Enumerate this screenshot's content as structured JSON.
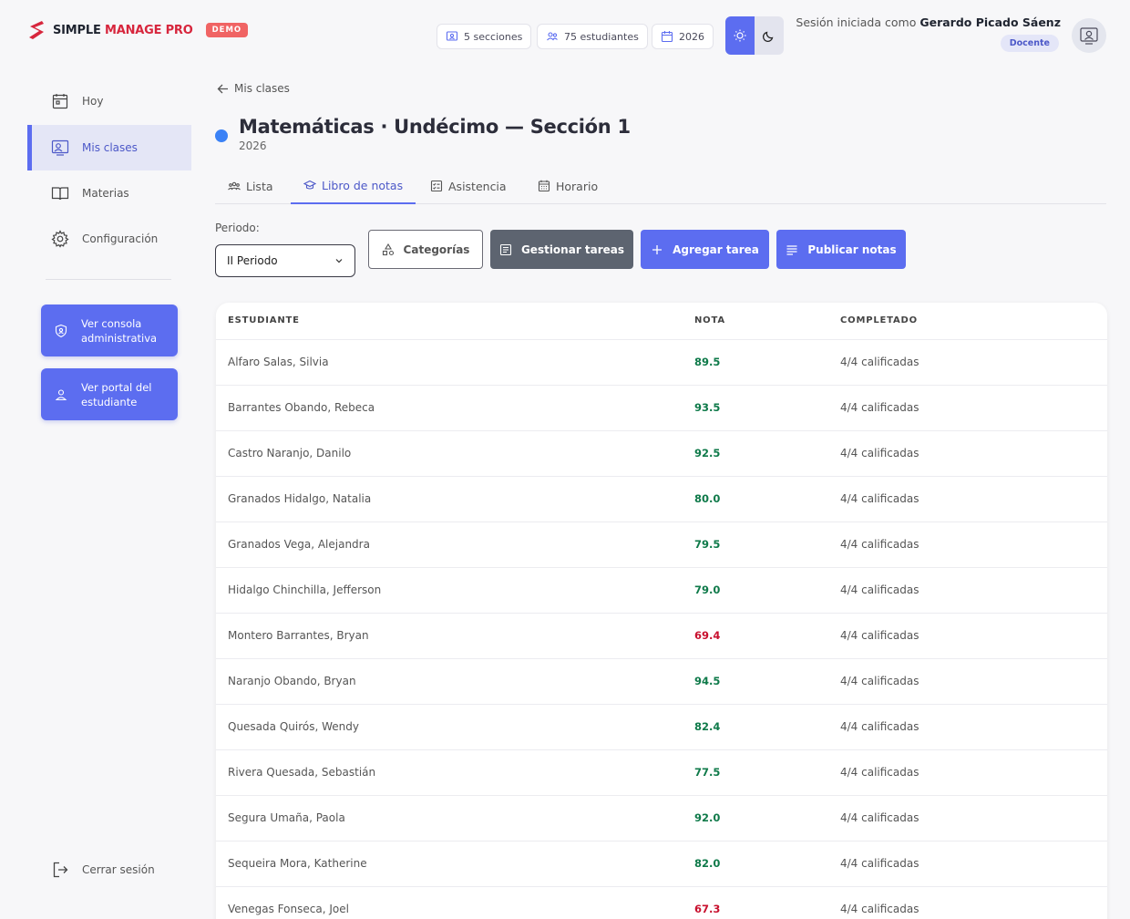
{
  "brand": {
    "name_part1": "SIMPLE ",
    "name_part2": "MANAGE PRO",
    "badge": "DEMO",
    "accent": "#d7263d"
  },
  "header": {
    "chips": [
      {
        "icon": "sections-icon",
        "label": "5 secciones"
      },
      {
        "icon": "students-icon",
        "label": "75 estudiantes"
      },
      {
        "icon": "calendar-icon",
        "label": "2026"
      }
    ],
    "session_prefix": "Sesión iniciada como ",
    "user_name": "Gerardo Picado Sáenz",
    "role": "Docente"
  },
  "sidebar": {
    "items": [
      {
        "label": "Hoy",
        "icon": "calendar-today-icon"
      },
      {
        "label": "Mis clases",
        "icon": "classes-icon"
      },
      {
        "label": "Materias",
        "icon": "book-icon"
      },
      {
        "label": "Configuración",
        "icon": "gear-icon"
      }
    ],
    "admin_button": "Ver consola administrativa",
    "student_button": "Ver portal del estudiante",
    "logout": "Cerrar sesión"
  },
  "main": {
    "back_label": "Mis clases",
    "title": "Matemáticas · Undécimo — Sección 1",
    "year": "2026",
    "tabs": [
      {
        "label": "Lista",
        "icon": "group-icon"
      },
      {
        "label": "Libro de notas",
        "icon": "graduation-cap-icon"
      },
      {
        "label": "Asistencia",
        "icon": "checklist-icon"
      },
      {
        "label": "Horario",
        "icon": "calendar-grid-icon"
      }
    ],
    "period_label": "Periodo:",
    "period_value": "II Periodo",
    "buttons": {
      "categories": "Categorías",
      "manage": "Gestionar tareas",
      "add": "Agregar tarea",
      "publish": "Publicar notas"
    }
  },
  "table": {
    "headers": {
      "student": "ESTUDIANTE",
      "grade": "NOTA",
      "completed": "COMPLETADO"
    },
    "rows": [
      {
        "student": "Alfaro Salas, Silvia",
        "grade": "89.5",
        "completed": "4/4 calificadas",
        "status": "pass"
      },
      {
        "student": "Barrantes Obando, Rebeca",
        "grade": "93.5",
        "completed": "4/4 calificadas",
        "status": "pass"
      },
      {
        "student": "Castro Naranjo, Danilo",
        "grade": "92.5",
        "completed": "4/4 calificadas",
        "status": "pass"
      },
      {
        "student": "Granados Hidalgo, Natalia",
        "grade": "80.0",
        "completed": "4/4 calificadas",
        "status": "pass"
      },
      {
        "student": "Granados Vega, Alejandra",
        "grade": "79.5",
        "completed": "4/4 calificadas",
        "status": "pass"
      },
      {
        "student": "Hidalgo Chinchilla, Jefferson",
        "grade": "79.0",
        "completed": "4/4 calificadas",
        "status": "pass"
      },
      {
        "student": "Montero Barrantes, Bryan",
        "grade": "69.4",
        "completed": "4/4 calificadas",
        "status": "fail"
      },
      {
        "student": "Naranjo Obando, Bryan",
        "grade": "94.5",
        "completed": "4/4 calificadas",
        "status": "pass"
      },
      {
        "student": "Quesada Quirós, Wendy",
        "grade": "82.4",
        "completed": "4/4 calificadas",
        "status": "pass"
      },
      {
        "student": "Rivera Quesada, Sebastián",
        "grade": "77.5",
        "completed": "4/4 calificadas",
        "status": "pass"
      },
      {
        "student": "Segura Umaña, Paola",
        "grade": "92.0",
        "completed": "4/4 calificadas",
        "status": "pass"
      },
      {
        "student": "Sequeira Mora, Katherine",
        "grade": "82.0",
        "completed": "4/4 calificadas",
        "status": "pass"
      },
      {
        "student": "Venegas Fonseca, Joel",
        "grade": "67.3",
        "completed": "4/4 calificadas",
        "status": "fail"
      }
    ]
  },
  "colors": {
    "primary": "#5c6df0",
    "pass": "#0f7a4a",
    "fail": "#c8102e"
  }
}
